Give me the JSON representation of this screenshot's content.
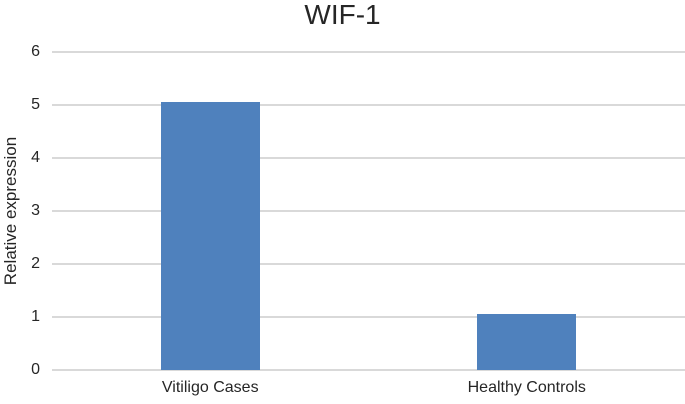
{
  "chart_data": {
    "type": "bar",
    "title": "WIF-1",
    "categories": [
      "Vitiligo Cases",
      "Healthy Controls"
    ],
    "values": [
      5.05,
      1.05
    ],
    "xlabel": "",
    "ylabel": "Relative expression",
    "ylim": [
      0,
      6
    ],
    "ytick_step": 1,
    "ytick_labels": [
      "0",
      "1",
      "2",
      "3",
      "4",
      "5",
      "6"
    ],
    "grid": true,
    "legend": false,
    "bar_color": "#4F81BD",
    "gridline_color": "#D9D9D9",
    "text_color": "#262626",
    "background_color": "#FFFFFF"
  }
}
